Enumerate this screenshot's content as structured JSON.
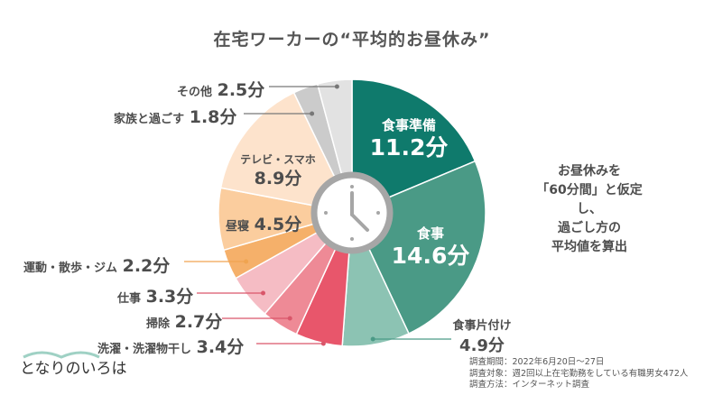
{
  "title": "在宅ワーカーの“平均的お昼休み”",
  "note_lines": [
    "お昼休みを",
    "「60分間」と仮定し、",
    "過ごし方の",
    "平均値を算出"
  ],
  "survey": {
    "period": "調査期間：2022年6月20日～27日",
    "target": "調査対象：週2回以上在宅勤務をしている有職男女472人",
    "method": "調査方法：インターネット調査"
  },
  "logo": {
    "text": "となりのいろは"
  },
  "center_icon": "clock-icon",
  "chart_data": {
    "type": "pie",
    "title": "在宅ワーカーの“平均的お昼休み”",
    "unit": "分",
    "total": 60,
    "start_angle": "12 o'clock, clockwise",
    "categories": [
      "食事準備",
      "食事",
      "食事片付け",
      "洗濯・洗濯物干し",
      "掃除",
      "仕事",
      "運動・散歩・ジム",
      "昼寝",
      "テレビ・スマホ",
      "家族と過ごす",
      "その他"
    ],
    "values": [
      11.2,
      14.6,
      4.9,
      3.4,
      2.7,
      3.3,
      2.2,
      4.5,
      8.9,
      1.8,
      2.5
    ],
    "colors": [
      "#0f7a6c",
      "#4a9a86",
      "#8cc3b3",
      "#e8566b",
      "#ee8a96",
      "#f5bcc4",
      "#f5b06a",
      "#fbcd9e",
      "#fde3cc",
      "#cbcbcb",
      "#e2e2e2"
    ],
    "labels": [
      "11.2分",
      "14.6分",
      "4.9分",
      "3.4分",
      "2.7分",
      "3.3分",
      "2.2分",
      "4.5分",
      "8.9分",
      "1.8分",
      "2.5分"
    ],
    "legend": "none (direct labels)"
  },
  "labels": {
    "shokuji_junbi": {
      "name": "食事準備",
      "value": "11.2分"
    },
    "shokuji": {
      "name": "食事",
      "value": "14.6分"
    },
    "katazuke": {
      "name": "食事片付け",
      "value": "4.9分"
    },
    "sentaku": {
      "name": "洗濯・洗濯物干し",
      "value": "3.4分"
    },
    "souji": {
      "name": "掃除",
      "value": "2.7分"
    },
    "shigoto": {
      "name": "仕事",
      "value": "3.3分"
    },
    "undou": {
      "name": "運動・散歩・ジム",
      "value": "2.2分"
    },
    "hirune": {
      "name": "昼寝",
      "value": "4.5分"
    },
    "tv": {
      "name": "テレビ・スマホ",
      "value": "8.9分"
    },
    "kazoku": {
      "name": "家族と過ごす",
      "value": "1.8分"
    },
    "sonota": {
      "name": "その他",
      "value": "2.5分"
    }
  }
}
